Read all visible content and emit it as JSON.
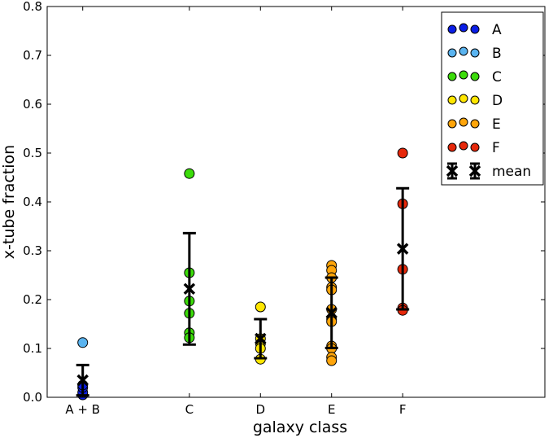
{
  "chart_data": {
    "type": "scatter",
    "title": "",
    "xlabel": "galaxy class",
    "ylabel": "x-tube fraction",
    "xlim": [
      0,
      7
    ],
    "ylim": [
      0,
      0.8
    ],
    "grid": false,
    "legend_position": "top-right",
    "xticks": [
      {
        "x": 0.5,
        "label": "A + B"
      },
      {
        "x": 2,
        "label": "C"
      },
      {
        "x": 3,
        "label": "D"
      },
      {
        "x": 4,
        "label": "E"
      },
      {
        "x": 5,
        "label": "F"
      }
    ],
    "yticks": [
      "0.0",
      "0.1",
      "0.2",
      "0.3",
      "0.4",
      "0.5",
      "0.6",
      "0.7",
      "0.8"
    ],
    "series": [
      {
        "name": "A",
        "color": "#0a1ee6",
        "x": 0.5,
        "values": [
          0.005,
          0.01,
          0.02,
          0.025
        ]
      },
      {
        "name": "B",
        "color": "#5ab4f0",
        "x": 0.5,
        "values": [
          0.112
        ]
      },
      {
        "name": "C",
        "color": "#3cdc0a",
        "x": 2,
        "values": [
          0.458,
          0.255,
          0.197,
          0.172,
          0.132,
          0.122
        ]
      },
      {
        "name": "D",
        "color": "#ffe600",
        "x": 3,
        "values": [
          0.185,
          0.12,
          0.11,
          0.1,
          0.078
        ]
      },
      {
        "name": "E",
        "color": "#ffa50a",
        "x": 4,
        "values": [
          0.27,
          0.26,
          0.245,
          0.225,
          0.22,
          0.18,
          0.16,
          0.155,
          0.105,
          0.1,
          0.082,
          0.075
        ]
      },
      {
        "name": "F",
        "color": "#e6280a",
        "x": 5,
        "values": [
          0.5,
          0.396,
          0.262,
          0.183,
          0.178
        ]
      }
    ],
    "mean": {
      "name": "mean",
      "points": [
        {
          "x": 0.5,
          "y": 0.035,
          "err": 0.031
        },
        {
          "x": 2,
          "y": 0.222,
          "err": 0.114
        },
        {
          "x": 3,
          "y": 0.12,
          "err": 0.04
        },
        {
          "x": 4,
          "y": 0.173,
          "err": 0.072
        },
        {
          "x": 5,
          "y": 0.304,
          "err": 0.124
        }
      ]
    }
  }
}
